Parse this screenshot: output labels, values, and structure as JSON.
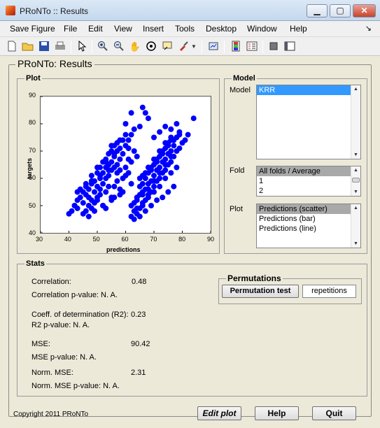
{
  "window": {
    "title": "PRoNTo :: Results",
    "controls": {
      "minimize": "▁",
      "maximize": "▢",
      "close": "✕"
    }
  },
  "menu": {
    "items": [
      "Save Figure",
      "File",
      "Edit",
      "View",
      "Insert",
      "Tools",
      "Desktop",
      "Window",
      "Help"
    ],
    "dock_arrow": "↘"
  },
  "toolbar": {
    "icons": [
      "new-figure-icon",
      "open-file-icon",
      "save-icon",
      "print-icon",
      "pointer-arrow-icon",
      "zoom-in-icon",
      "zoom-out-icon",
      "pan-hand-icon",
      "rotate-3d-icon",
      "data-cursor-icon",
      "brush-icon",
      "link-plot-icon",
      "colorbar-icon",
      "legend-icon",
      "hide-plot-tools-icon",
      "show-plot-tools-icon"
    ]
  },
  "main": {
    "title": "PRoNTo: Results"
  },
  "plot": {
    "panel_title": "Plot"
  },
  "chart_data": {
    "type": "scatter",
    "title": "",
    "xlabel": "predictions",
    "ylabel": "targets",
    "xlim": [
      30,
      90
    ],
    "ylim": [
      40,
      90
    ],
    "xticks": [
      30,
      40,
      50,
      60,
      70,
      80,
      90
    ],
    "yticks": [
      40,
      50,
      60,
      70,
      80,
      90
    ],
    "grid": false,
    "series": [
      {
        "color": "#0000ff",
        "x": [
          40,
          41,
          42,
          43,
          43,
          44,
          45,
          45,
          46,
          46,
          47,
          47,
          48,
          48,
          48,
          49,
          49,
          50,
          50,
          50,
          51,
          51,
          51,
          52,
          52,
          52,
          53,
          53,
          53,
          54,
          54,
          54,
          55,
          55,
          55,
          56,
          56,
          56,
          57,
          57,
          57,
          58,
          58,
          59,
          59,
          60,
          60,
          61,
          62,
          63,
          47,
          49,
          52,
          55,
          58,
          44,
          46,
          50,
          53,
          56,
          59,
          61,
          48,
          51,
          54,
          57,
          60,
          62,
          64,
          45,
          48,
          52,
          55,
          58,
          43,
          47,
          51,
          54,
          57,
          60,
          42,
          46,
          49,
          53,
          56,
          59,
          62,
          50,
          53,
          56,
          58,
          61,
          63,
          55,
          58,
          61,
          60,
          62
        ],
        "y": [
          47,
          48,
          50,
          49,
          52,
          53,
          51,
          55,
          54,
          57,
          50,
          56,
          52,
          58,
          61,
          55,
          59,
          53,
          57,
          62,
          56,
          60,
          64,
          58,
          62,
          66,
          60,
          64,
          67,
          61,
          65,
          69,
          63,
          66,
          70,
          64,
          68,
          72,
          65,
          70,
          73,
          67,
          71,
          69,
          74,
          72,
          76,
          74,
          76,
          78,
          46,
          48,
          50,
          52,
          54,
          56,
          58,
          52,
          55,
          57,
          60,
          62,
          59,
          61,
          63,
          62,
          64,
          66,
          68,
          47,
          49,
          50,
          53,
          56,
          55,
          53,
          54,
          57,
          59,
          61,
          50,
          48,
          51,
          49,
          53,
          55,
          58,
          64,
          66,
          69,
          63,
          67,
          70,
          72,
          74,
          71,
          80,
          84
        ]
      },
      {
        "color": "#0000ff",
        "x": [
          62,
          63,
          63,
          64,
          64,
          65,
          65,
          65,
          66,
          66,
          66,
          67,
          67,
          67,
          68,
          68,
          68,
          69,
          69,
          69,
          70,
          70,
          70,
          71,
          71,
          71,
          72,
          72,
          72,
          73,
          73,
          73,
          74,
          74,
          74,
          75,
          75,
          75,
          76,
          76,
          76,
          77,
          77,
          78,
          78,
          79,
          79,
          80,
          81,
          82,
          84,
          63,
          65,
          67,
          69,
          71,
          73,
          75,
          77,
          64,
          66,
          68,
          70,
          72,
          74,
          76,
          78,
          62,
          64,
          66,
          68,
          70,
          72,
          74,
          76,
          65,
          67,
          69,
          71,
          73,
          75,
          77,
          79,
          66,
          68,
          70,
          72,
          74,
          76,
          70,
          72,
          74,
          76,
          78,
          66,
          67,
          68,
          65
        ],
        "y": [
          46,
          48,
          51,
          47,
          53,
          49,
          54,
          57,
          50,
          55,
          58,
          52,
          56,
          60,
          54,
          58,
          62,
          55,
          59,
          63,
          57,
          61,
          65,
          59,
          63,
          67,
          60,
          64,
          68,
          62,
          66,
          70,
          63,
          67,
          71,
          65,
          69,
          73,
          66,
          70,
          74,
          68,
          72,
          70,
          75,
          71,
          77,
          73,
          74,
          76,
          82,
          45,
          46,
          48,
          50,
          52,
          53,
          55,
          57,
          49,
          51,
          53,
          55,
          57,
          60,
          62,
          64,
          50,
          52,
          54,
          56,
          59,
          62,
          65,
          68,
          60,
          62,
          64,
          66,
          69,
          72,
          74,
          76,
          61,
          64,
          67,
          70,
          73,
          75,
          75,
          77,
          79,
          78,
          80,
          86,
          84,
          82,
          79
        ]
      }
    ]
  },
  "model": {
    "panel_title": "Model",
    "model_label": "Model",
    "model_items": [
      "KRR"
    ],
    "fold_label": "Fold",
    "fold_items": [
      "All folds / Average",
      "1",
      "2"
    ],
    "plot_label": "Plot",
    "plot_items": [
      "Predictions (scatter)",
      "Predictions (bar)",
      "Predictions (line)"
    ]
  },
  "stats": {
    "panel_title": "Stats",
    "correlation_label": "Correlation:",
    "correlation_value": "0.48",
    "correlation_p": "Correlation p-value: N. A.",
    "r2_label": "Coeff. of determination (R2):",
    "r2_value": "0.23",
    "r2_p": "R2 p-value: N. A.",
    "mse_label": "MSE:",
    "mse_value": "90.42",
    "mse_p": "MSE p-value: N. A.",
    "nmse_label": "Norm. MSE:",
    "nmse_value": "2.31",
    "nmse_p": "Norm. MSE p-value: N. A."
  },
  "permutations": {
    "panel_title": "Permutations",
    "button_label": "Permutation test",
    "repetitions_value": "repetitions"
  },
  "footer": {
    "copyright": "Copyright 2011 PRoNTo",
    "edit_plot": "Edit plot",
    "help": "Help",
    "quit": "Quit"
  }
}
